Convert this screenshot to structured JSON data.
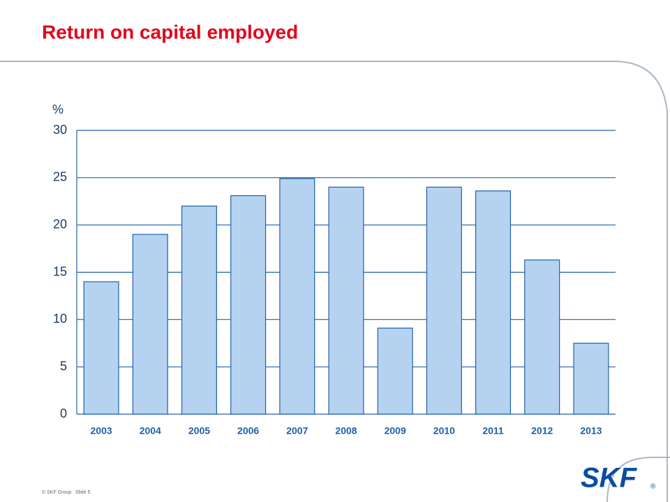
{
  "chart_data": {
    "type": "bar",
    "title": "Return on capital employed",
    "y_label": "%",
    "categories": [
      "2003",
      "2004",
      "2005",
      "2006",
      "2007",
      "2008",
      "2009",
      "2010",
      "2011",
      "2012",
      "2013"
    ],
    "values": [
      14.0,
      19.0,
      22.0,
      23.1,
      24.9,
      24.0,
      9.1,
      24.0,
      23.6,
      16.3,
      7.5
    ],
    "color": "#b5d3f0",
    "edge_color": "#1f5fa8",
    "ylim": [
      0,
      30
    ],
    "yticks": [
      0,
      5,
      10,
      15,
      20,
      25,
      30
    ],
    "grid": true
  },
  "footer": {
    "copyright": "© SKF Group",
    "slide": "Slide 5"
  },
  "logo": {
    "text": "SKF",
    "mark": "®"
  }
}
